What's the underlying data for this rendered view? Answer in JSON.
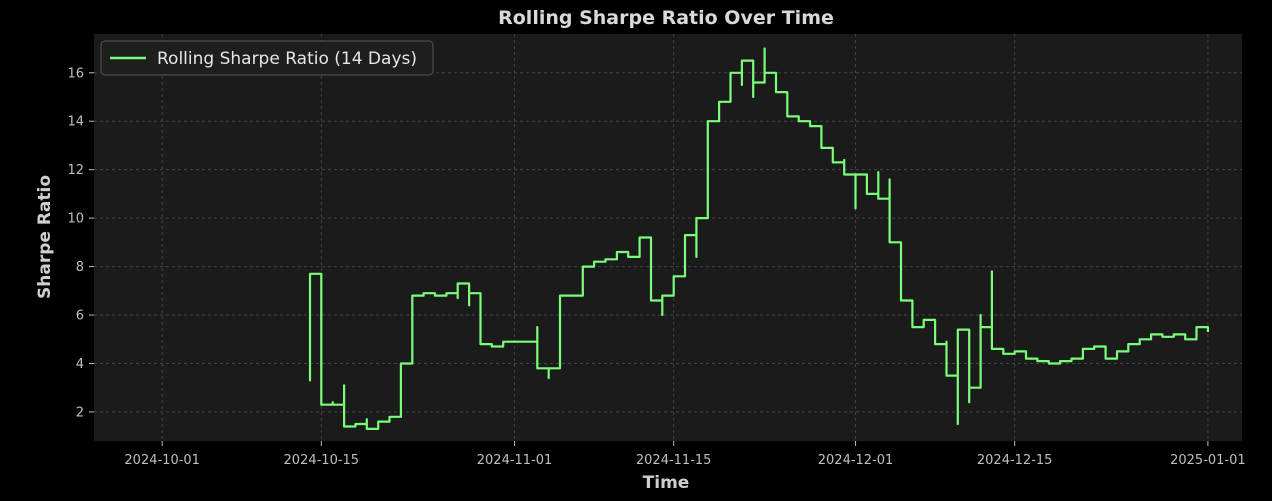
{
  "chart_data": {
    "type": "line",
    "title": "Rolling Sharpe Ratio Over Time",
    "xlabel": "Time",
    "ylabel": "Sharpe Ratio",
    "x_ticks": [
      "2024-10-01",
      "2024-10-15",
      "2024-11-01",
      "2024-11-15",
      "2024-12-01",
      "2024-12-15",
      "2025-01-01"
    ],
    "y_ticks": [
      2,
      4,
      6,
      8,
      10,
      12,
      14,
      16
    ],
    "xlim": [
      "2024-09-25",
      "2025-01-04"
    ],
    "ylim": [
      0.8,
      17.6
    ],
    "grid": true,
    "legend_position": "top-left",
    "colors": {
      "background": "#1b1b1b",
      "figure": "#000000",
      "line": "#7bff7b"
    },
    "series": [
      {
        "name": "Rolling Sharpe Ratio (14 Days)",
        "points": [
          [
            "2024-10-14",
            7.5
          ],
          [
            "2024-10-14",
            3.3
          ],
          [
            "2024-10-14",
            7.7
          ],
          [
            "2024-10-15",
            7.3
          ],
          [
            "2024-10-15",
            3.4
          ],
          [
            "2024-10-15",
            2.3
          ],
          [
            "2024-10-16",
            2.4
          ],
          [
            "2024-10-16",
            2.3
          ],
          [
            "2024-10-17",
            3.1
          ],
          [
            "2024-10-17",
            1.4
          ],
          [
            "2024-10-18",
            1.5
          ],
          [
            "2024-10-19",
            1.7
          ],
          [
            "2024-10-19",
            1.3
          ],
          [
            "2024-10-20",
            1.6
          ],
          [
            "2024-10-21",
            1.8
          ],
          [
            "2024-10-22",
            2.0
          ],
          [
            "2024-10-22",
            4.0
          ],
          [
            "2024-10-23",
            6.5
          ],
          [
            "2024-10-23",
            6.8
          ],
          [
            "2024-10-24",
            6.9
          ],
          [
            "2024-10-25",
            6.8
          ],
          [
            "2024-10-26",
            6.9
          ],
          [
            "2024-10-27",
            6.7
          ],
          [
            "2024-10-27",
            7.3
          ],
          [
            "2024-10-28",
            6.4
          ],
          [
            "2024-10-28",
            6.9
          ],
          [
            "2024-10-29",
            5.8
          ],
          [
            "2024-10-29",
            4.8
          ],
          [
            "2024-10-30",
            4.7
          ],
          [
            "2024-10-31",
            4.9
          ],
          [
            "2024-11-01",
            4.9
          ],
          [
            "2024-11-02",
            4.9
          ],
          [
            "2024-11-03",
            5.5
          ],
          [
            "2024-11-03",
            3.8
          ],
          [
            "2024-11-04",
            3.4
          ],
          [
            "2024-11-04",
            3.8
          ],
          [
            "2024-11-05",
            4.0
          ],
          [
            "2024-11-05",
            6.2
          ],
          [
            "2024-11-05",
            6.8
          ],
          [
            "2024-11-06",
            6.8
          ],
          [
            "2024-11-07",
            6.8
          ],
          [
            "2024-11-07",
            8.0
          ],
          [
            "2024-11-08",
            8.1
          ],
          [
            "2024-11-08",
            8.2
          ],
          [
            "2024-11-09",
            8.3
          ],
          [
            "2024-11-10",
            8.4
          ],
          [
            "2024-11-10",
            8.6
          ],
          [
            "2024-11-11",
            8.4
          ],
          [
            "2024-11-12",
            9.1
          ],
          [
            "2024-11-12",
            9.2
          ],
          [
            "2024-11-13",
            9.1
          ],
          [
            "2024-11-13",
            6.6
          ],
          [
            "2024-11-14",
            6.0
          ],
          [
            "2024-11-14",
            6.8
          ],
          [
            "2024-11-15",
            7.6
          ],
          [
            "2024-11-16",
            8.1
          ],
          [
            "2024-11-16",
            9.3
          ],
          [
            "2024-11-17",
            8.4
          ],
          [
            "2024-11-17",
            10.0
          ],
          [
            "2024-11-18",
            10.5
          ],
          [
            "2024-11-18",
            14.0
          ],
          [
            "2024-11-19",
            14.3
          ],
          [
            "2024-11-19",
            14.8
          ],
          [
            "2024-11-20",
            15.3
          ],
          [
            "2024-11-20",
            16.0
          ],
          [
            "2024-11-21",
            15.5
          ],
          [
            "2024-11-21",
            16.5
          ],
          [
            "2024-11-22",
            15.0
          ],
          [
            "2024-11-22",
            15.6
          ],
          [
            "2024-11-23",
            17.0
          ],
          [
            "2024-11-23",
            16.0
          ],
          [
            "2024-11-24",
            15.5
          ],
          [
            "2024-11-24",
            15.2
          ],
          [
            "2024-11-25",
            14.6
          ],
          [
            "2024-11-25",
            14.2
          ],
          [
            "2024-11-26",
            14.0
          ],
          [
            "2024-11-27",
            13.8
          ],
          [
            "2024-11-28",
            13.5
          ],
          [
            "2024-11-28",
            12.9
          ],
          [
            "2024-11-29",
            12.8
          ],
          [
            "2024-11-29",
            12.3
          ],
          [
            "2024-11-30",
            12.4
          ],
          [
            "2024-11-30",
            11.8
          ],
          [
            "2024-12-01",
            10.4
          ],
          [
            "2024-12-01",
            11.8
          ],
          [
            "2024-12-02",
            11.5
          ],
          [
            "2024-12-02",
            11.0
          ],
          [
            "2024-12-03",
            11.9
          ],
          [
            "2024-12-03",
            10.8
          ],
          [
            "2024-12-04",
            11.6
          ],
          [
            "2024-12-04",
            9.0
          ],
          [
            "2024-12-05",
            7.6
          ],
          [
            "2024-12-05",
            6.6
          ],
          [
            "2024-12-06",
            6.0
          ],
          [
            "2024-12-06",
            5.5
          ],
          [
            "2024-12-07",
            5.8
          ],
          [
            "2024-12-08",
            5.2
          ],
          [
            "2024-12-08",
            4.8
          ],
          [
            "2024-12-09",
            4.9
          ],
          [
            "2024-12-09",
            3.5
          ],
          [
            "2024-12-10",
            1.5
          ],
          [
            "2024-12-10",
            2.0
          ],
          [
            "2024-12-10",
            5.4
          ],
          [
            "2024-12-11",
            2.4
          ],
          [
            "2024-12-11",
            4.3
          ],
          [
            "2024-12-11",
            3.0
          ],
          [
            "2024-12-12",
            6.0
          ],
          [
            "2024-12-12",
            5.5
          ],
          [
            "2024-12-13",
            7.8
          ],
          [
            "2024-12-13",
            4.6
          ],
          [
            "2024-12-14",
            4.4
          ],
          [
            "2024-12-15",
            4.5
          ],
          [
            "2024-12-16",
            4.2
          ],
          [
            "2024-12-17",
            4.1
          ],
          [
            "2024-12-18",
            4.0
          ],
          [
            "2024-12-19",
            4.1
          ],
          [
            "2024-12-20",
            4.2
          ],
          [
            "2024-12-21",
            4.6
          ],
          [
            "2024-12-22",
            4.7
          ],
          [
            "2024-12-23",
            4.2
          ],
          [
            "2024-12-24",
            4.5
          ],
          [
            "2024-12-25",
            4.8
          ],
          [
            "2024-12-26",
            5.0
          ],
          [
            "2024-12-27",
            5.2
          ],
          [
            "2024-12-28",
            5.1
          ],
          [
            "2024-12-29",
            5.2
          ],
          [
            "2024-12-30",
            5.0
          ],
          [
            "2024-12-31",
            5.5
          ],
          [
            "2025-01-01",
            5.3
          ]
        ]
      }
    ]
  }
}
